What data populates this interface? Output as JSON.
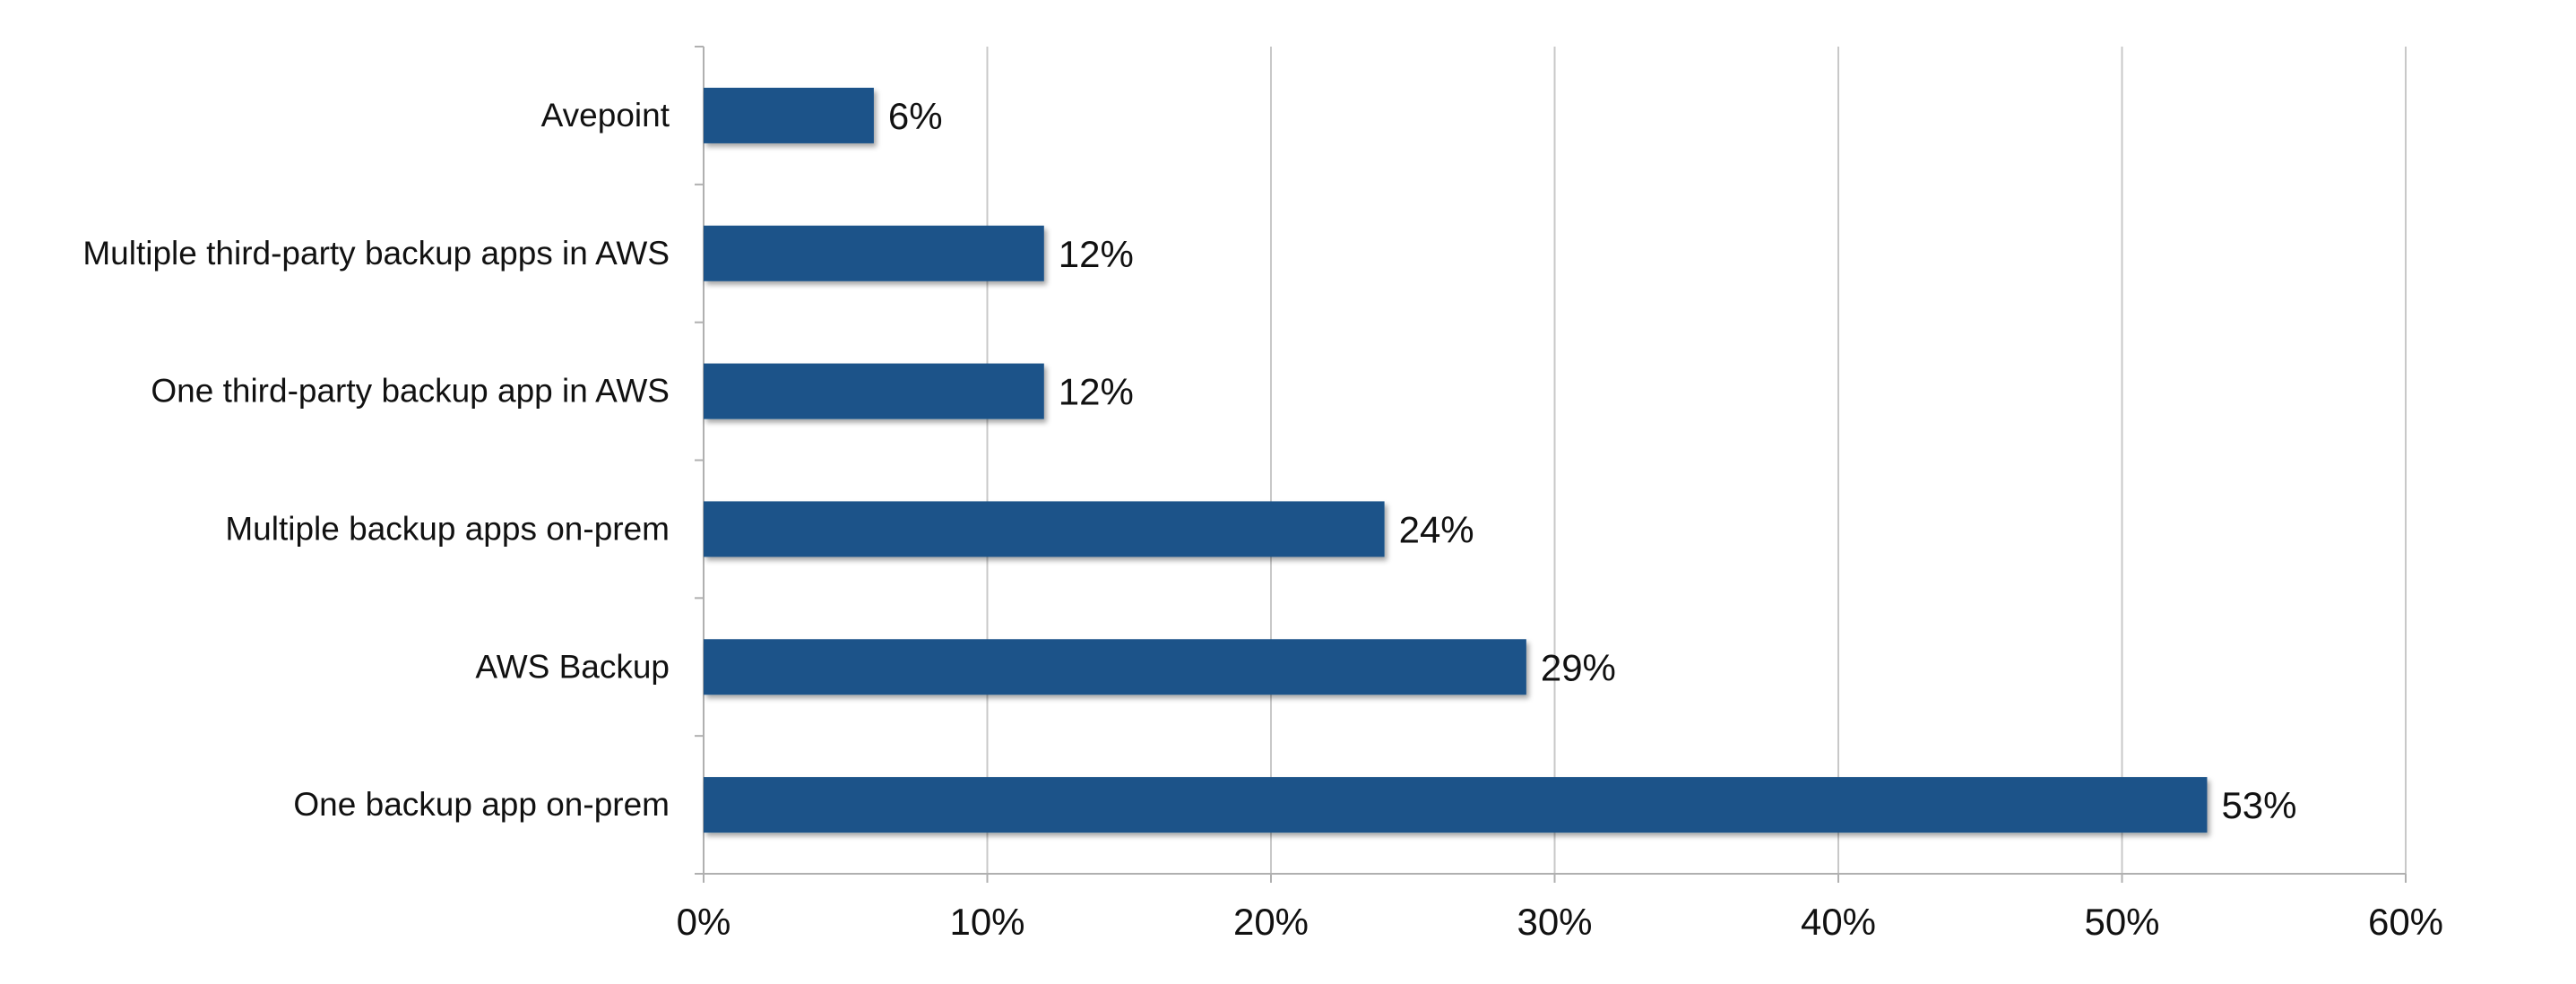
{
  "chart_data": {
    "type": "bar",
    "orientation": "horizontal",
    "categories": [
      "Avepoint",
      "Multiple third-party backup apps in AWS",
      "One third-party backup app in AWS",
      "Multiple backup apps on-prem",
      "AWS Backup",
      "One backup app on-prem"
    ],
    "values": [
      6,
      12,
      12,
      24,
      29,
      53
    ],
    "data_labels": [
      "6%",
      "12%",
      "12%",
      "24%",
      "29%",
      "53%"
    ],
    "x_ticks": [
      0,
      10,
      20,
      30,
      40,
      50,
      60
    ],
    "x_tick_labels": [
      "0%",
      "10%",
      "20%",
      "30%",
      "40%",
      "50%",
      "60%"
    ],
    "xlim": [
      0,
      60
    ],
    "title": "",
    "xlabel": "",
    "ylabel": "",
    "grid": "vertical",
    "legend": "none",
    "bar_color": "#1c5289"
  }
}
